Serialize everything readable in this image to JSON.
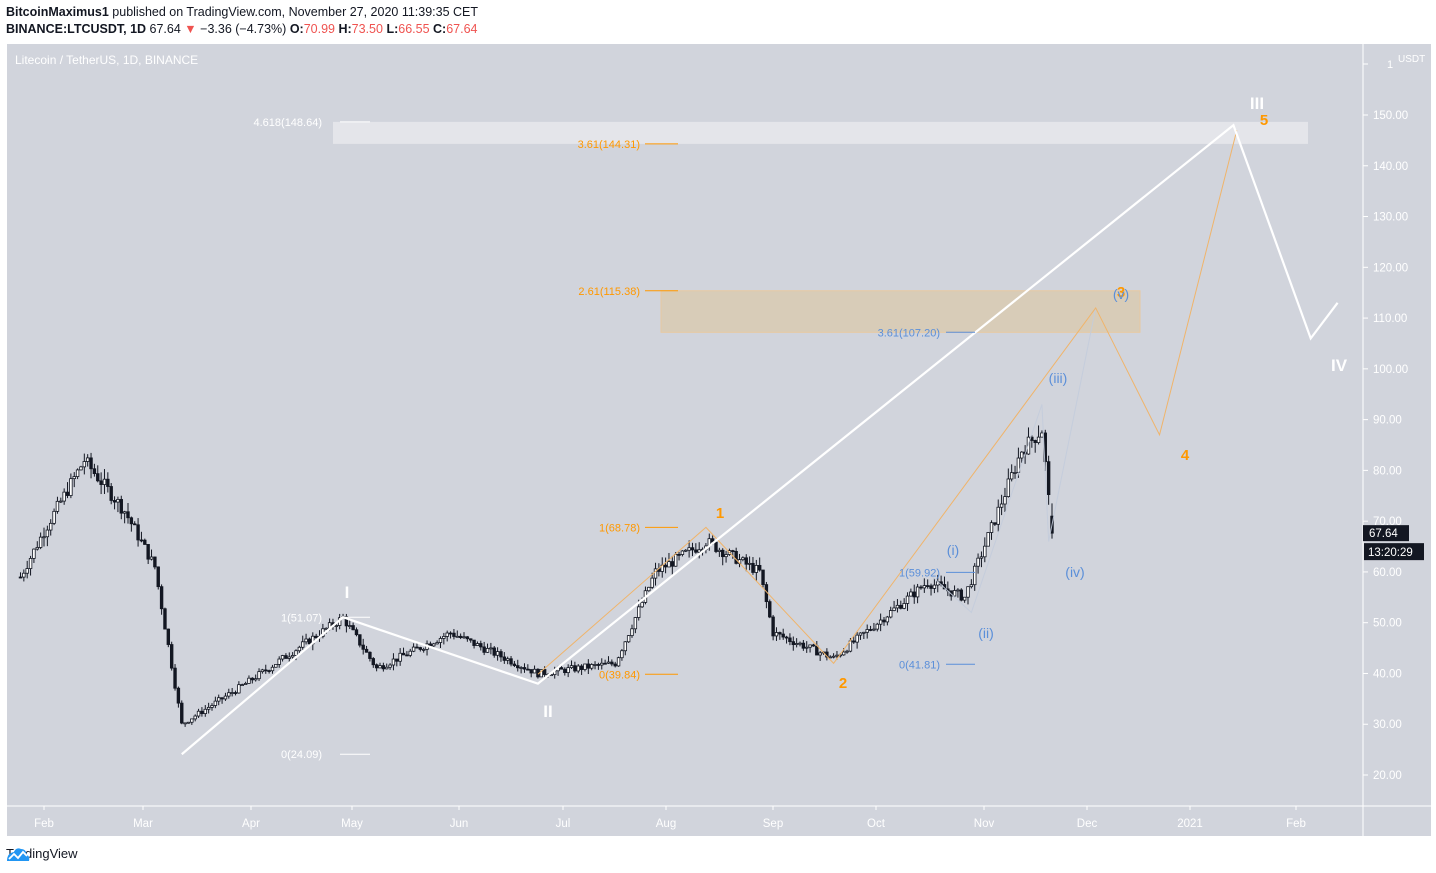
{
  "header": {
    "publisher": "BitcoinMaximus1",
    "published_text": "published on TradingView.com, November 27, 2020 11:39:35 CET",
    "symbol": "BINANCE:LTCUSDT, 1D",
    "last": "67.64",
    "change_arrow": "▼",
    "change": "−3.36 (−4.73%)",
    "o_label": "O:",
    "o": "70.99",
    "h_label": "H:",
    "h": "73.50",
    "l_label": "L:",
    "l": "66.55",
    "c_label": "C:",
    "c": "67.64"
  },
  "chart_title": "Litecoin / TetherUS, 1D, BINANCE",
  "price_axis": {
    "unit": "USDT",
    "top_tick": "1",
    "ticks": [
      "150.00",
      "140.00",
      "130.00",
      "120.00",
      "110.00",
      "100.00",
      "90.00",
      "80.00",
      "70.00",
      "60.00",
      "50.00",
      "40.00",
      "30.00",
      "20.00"
    ],
    "last_price_label": "67.64",
    "countdown_label": "13:20:29"
  },
  "time_axis": {
    "ticks": [
      "Feb",
      "Mar",
      "Apr",
      "May",
      "Jun",
      "Jul",
      "Aug",
      "Sep",
      "Oct",
      "Nov",
      "Dec",
      "2021",
      "Feb"
    ]
  },
  "annotations": {
    "white_waves": [
      "I",
      "II",
      "III",
      "IV"
    ],
    "orange_waves": [
      "1",
      "2",
      "3",
      "4",
      "5"
    ],
    "blue_waves": [
      "(i)",
      "(ii)",
      "(iii)",
      "(iv)",
      "(v)"
    ],
    "fib_white": [
      "4.618(148.64)",
      "1(51.07)",
      "0(24.09)"
    ],
    "fib_orange": [
      "3.61(144.31)",
      "2.61(115.38)",
      "1(68.78)",
      "0(39.84)"
    ],
    "fib_blue": [
      "3.61(107.20)",
      "1(59.92)",
      "0(41.81)"
    ]
  },
  "footer": {
    "brand": "TradingView"
  },
  "colors": {
    "background": "#d1d4dc",
    "candle_up": "#ffffff",
    "candle_down": "#131722",
    "white_wave": "#ffffff",
    "orange_wave": "#ff9800",
    "blue_wave": "#5b8fd9",
    "target_box_white": "#e6e7eb",
    "target_box_orange": "#d8ccb8",
    "down_change": "#ef5350"
  },
  "chart_data": {
    "type": "candlestick",
    "title": "Litecoin / TetherUS, 1D, BINANCE",
    "xlabel": "",
    "ylabel": "USDT",
    "ylim": [
      15,
      160
    ],
    "x_ticks": [
      "Feb",
      "Mar",
      "Apr",
      "May",
      "Jun",
      "Jul",
      "Aug",
      "Sep",
      "Oct",
      "Nov",
      "Dec",
      "2021",
      "Feb"
    ],
    "y_ticks": [
      20,
      30,
      40,
      50,
      60,
      70,
      80,
      90,
      100,
      110,
      120,
      130,
      140,
      150
    ],
    "approx_closes_monthly": [
      {
        "date": "2020-01-25",
        "close": 59
      },
      {
        "date": "2020-02-01",
        "close": 68
      },
      {
        "date": "2020-02-13",
        "close": 82
      },
      {
        "date": "2020-02-25",
        "close": 72
      },
      {
        "date": "2020-03-05",
        "close": 61
      },
      {
        "date": "2020-03-13",
        "close": 30
      },
      {
        "date": "2020-04-01",
        "close": 38
      },
      {
        "date": "2020-04-30",
        "close": 51
      },
      {
        "date": "2020-05-10",
        "close": 41
      },
      {
        "date": "2020-06-01",
        "close": 48
      },
      {
        "date": "2020-06-27",
        "close": 40
      },
      {
        "date": "2020-07-20",
        "close": 42
      },
      {
        "date": "2020-08-01",
        "close": 60
      },
      {
        "date": "2020-08-16",
        "close": 66
      },
      {
        "date": "2020-09-01",
        "close": 60
      },
      {
        "date": "2020-09-05",
        "close": 48
      },
      {
        "date": "2020-09-23",
        "close": 43
      },
      {
        "date": "2020-10-21",
        "close": 58
      },
      {
        "date": "2020-11-01",
        "close": 55
      },
      {
        "date": "2020-11-18",
        "close": 84
      },
      {
        "date": "2020-11-24",
        "close": 88
      },
      {
        "date": "2020-11-27",
        "close": 67.64
      }
    ],
    "last_ohlc": {
      "open": 70.99,
      "high": 73.5,
      "low": 66.55,
      "close": 67.64,
      "change": -3.36,
      "change_pct": -4.73
    },
    "wave_paths": {
      "white": [
        {
          "label": "start",
          "date": "2020-03-13",
          "price": 24.09
        },
        {
          "label": "I",
          "date": "2020-04-30",
          "price": 51.07
        },
        {
          "label": "II",
          "date": "2020-06-27",
          "price": 38
        },
        {
          "label": "III",
          "date": "2021-01-20",
          "price": 148
        },
        {
          "label": "IV",
          "date": "2021-02-12",
          "price": 106
        },
        {
          "label": "",
          "date": "2021-02-20",
          "price": 113
        }
      ],
      "orange": [
        {
          "label": "0",
          "date": "2020-06-27",
          "price": 39.84
        },
        {
          "label": "1",
          "date": "2020-08-16",
          "price": 68.78
        },
        {
          "label": "2",
          "date": "2020-09-23",
          "price": 42
        },
        {
          "label": "3",
          "date": "2020-12-10",
          "price": 112
        },
        {
          "label": "4",
          "date": "2020-12-29",
          "price": 87
        },
        {
          "label": "5",
          "date": "2021-01-21",
          "price": 147
        }
      ],
      "blue": [
        {
          "label": "(i)",
          "date": "2020-10-21",
          "price": 59.92
        },
        {
          "label": "(ii)",
          "date": "2020-11-03",
          "price": 52
        },
        {
          "label": "(iii)",
          "date": "2020-11-24",
          "price": 93
        },
        {
          "label": "(iv)",
          "date": "2020-11-26",
          "price": 66
        },
        {
          "label": "(v)",
          "date": "2020-12-10",
          "price": 112
        }
      ]
    },
    "fib_levels": [
      {
        "set": "white",
        "ratio": 4.618,
        "price": 148.64
      },
      {
        "set": "white",
        "ratio": 1,
        "price": 51.07
      },
      {
        "set": "white",
        "ratio": 0,
        "price": 24.09
      },
      {
        "set": "orange",
        "ratio": 3.61,
        "price": 144.31
      },
      {
        "set": "orange",
        "ratio": 2.61,
        "price": 115.38
      },
      {
        "set": "orange",
        "ratio": 1,
        "price": 68.78
      },
      {
        "set": "orange",
        "ratio": 0,
        "price": 39.84
      },
      {
        "set": "blue",
        "ratio": 3.61,
        "price": 107.2
      },
      {
        "set": "blue",
        "ratio": 1,
        "price": 59.92
      },
      {
        "set": "blue",
        "ratio": 0,
        "price": 41.81
      }
    ],
    "target_zones": [
      {
        "color": "white",
        "from": 144.31,
        "to": 148.64
      },
      {
        "color": "orange",
        "from": 107.2,
        "to": 115.38
      }
    ]
  }
}
